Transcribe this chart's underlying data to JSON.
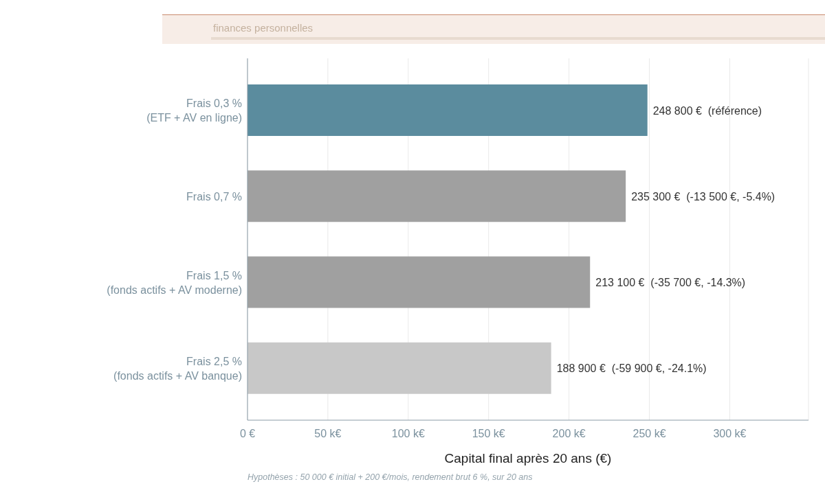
{
  "chart_data": {
    "type": "bar",
    "orientation": "horizontal",
    "subtitle": "finances personnelles",
    "xlabel": "Capital final après 20 ans (€)",
    "categories": [
      "Frais 0,3 %\n(ETF + AV en ligne)",
      "Frais 0,7 %",
      "Frais 1,5 %\n(fonds actifs + AV moderne)",
      "Frais 2,5 %\n(fonds actifs + AV banque)"
    ],
    "values": [
      248800,
      235300,
      213100,
      188900
    ],
    "colors": [
      "#5b8c9e",
      "#a0a0a0",
      "#a0a0a0",
      "#c8c8c8"
    ],
    "value_labels": [
      "248 800 €  (référence)",
      "235 300 €  (-13 500 €, -5.4%)",
      "213 100 €  (-35 700 €, -14.3%)",
      "188 900 €  (-59 900 €, -24.1%)"
    ],
    "xlim": [
      0,
      349000
    ],
    "xticks": [
      {
        "value": 0,
        "label": "0 €"
      },
      {
        "value": 50000,
        "label": "50 k€"
      },
      {
        "value": 100000,
        "label": "100 k€"
      },
      {
        "value": 150000,
        "label": "150 k€"
      },
      {
        "value": 200000,
        "label": "200 k€"
      },
      {
        "value": 250000,
        "label": "250 k€"
      },
      {
        "value": 300000,
        "label": "300 k€"
      }
    ],
    "grid": "x",
    "annotations": [
      "Hypothèses : 50 000 € initial + 200 €/mois, rendement brut 6 %, sur 20 ans"
    ]
  }
}
